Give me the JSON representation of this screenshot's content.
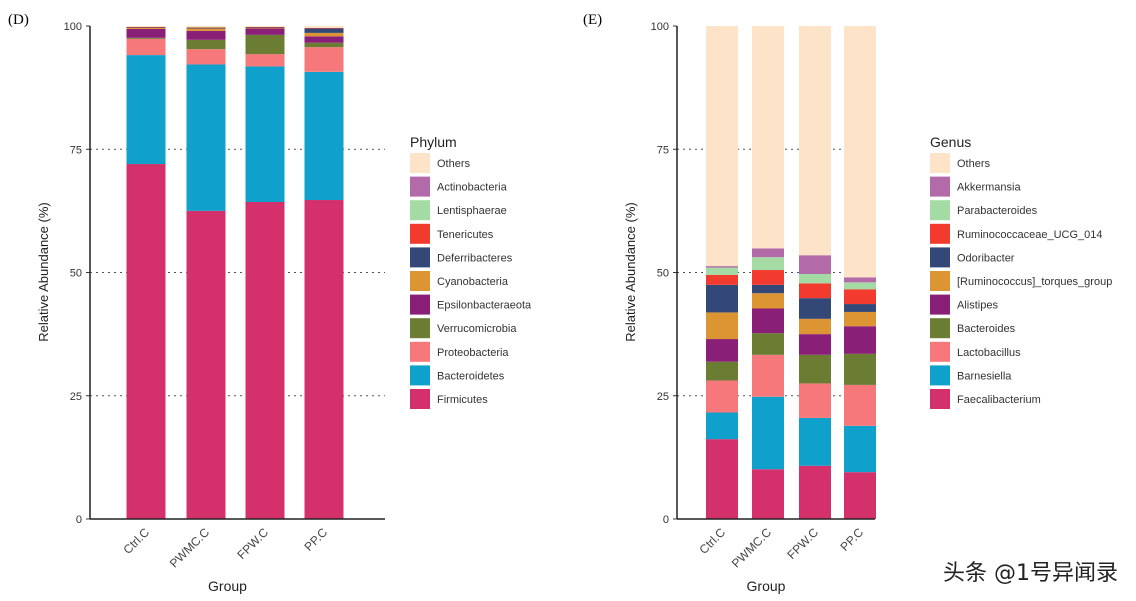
{
  "chart_data": [
    {
      "type": "bar",
      "stacked": true,
      "panel": "(D)",
      "xlabel": "Group",
      "ylabel": "Relative Abundance (%)",
      "ylim": [
        0,
        100
      ],
      "yticks": [
        0,
        25,
        50,
        75,
        100
      ],
      "categories": [
        "Ctrl.C",
        "PWMC.C",
        "FPW.C",
        "PP.C"
      ],
      "legend_title": "Phylum",
      "legend_position": "right",
      "series": [
        {
          "name": "Firmicutes",
          "color": "#d3306c",
          "values": [
            72.0,
            62.5,
            64.3,
            64.7
          ]
        },
        {
          "name": "Bacteroidetes",
          "color": "#0fa0cc",
          "values": [
            22.1,
            29.7,
            27.5,
            26.0
          ]
        },
        {
          "name": "Proteobacteria",
          "color": "#f7787a",
          "values": [
            3.3,
            3.1,
            2.5,
            5.0
          ]
        },
        {
          "name": "Verrucomicrobia",
          "color": "#6a7d33",
          "values": [
            0.2,
            1.9,
            3.9,
            0.9
          ]
        },
        {
          "name": "Epsilonbacteraeota",
          "color": "#8a1f78",
          "values": [
            1.8,
            1.8,
            1.3,
            1.3
          ]
        },
        {
          "name": "Cyanobacteria",
          "color": "#dd9533",
          "values": [
            0.2,
            0.5,
            0.1,
            0.7
          ]
        },
        {
          "name": "Deferribacteres",
          "color": "#344877",
          "values": [
            0.1,
            0.1,
            0.1,
            0.9
          ]
        },
        {
          "name": "Tenericutes",
          "color": "#f23a2e",
          "values": [
            0.1,
            0.1,
            0.1,
            0.1
          ]
        },
        {
          "name": "Lentisphaerae",
          "color": "#a4dba4",
          "values": [
            0.0,
            0.1,
            0.0,
            0.0
          ]
        },
        {
          "name": "Actinobacteria",
          "color": "#b26aa8",
          "values": [
            0.0,
            0.0,
            0.0,
            0.0
          ]
        },
        {
          "name": "Others",
          "color": "#fde3c8",
          "values": [
            0.2,
            0.2,
            0.2,
            0.4
          ]
        }
      ]
    },
    {
      "type": "bar",
      "stacked": true,
      "panel": "(E)",
      "xlabel": "Group",
      "ylabel": "Relative Abundance (%)",
      "ylim": [
        0,
        100
      ],
      "yticks": [
        0,
        25,
        50,
        75,
        100
      ],
      "categories": [
        "Ctrl.C",
        "PWMC.C",
        "FPW.C",
        "PP.C"
      ],
      "legend_title": "Genus",
      "legend_position": "right",
      "series": [
        {
          "name": "Faecalibacterium",
          "color": "#d3306c",
          "values": [
            16.2,
            10.1,
            10.8,
            9.5
          ]
        },
        {
          "name": "Barnesiella",
          "color": "#0fa0cc",
          "values": [
            5.4,
            14.7,
            9.7,
            9.4
          ]
        },
        {
          "name": "Lactobacillus",
          "color": "#f7787a",
          "values": [
            6.5,
            8.5,
            7.0,
            8.3
          ]
        },
        {
          "name": "Bacteroides",
          "color": "#6a7d33",
          "values": [
            3.8,
            4.4,
            5.8,
            6.3
          ]
        },
        {
          "name": "Alistipes",
          "color": "#8a1f78",
          "values": [
            4.6,
            5.0,
            4.2,
            5.6
          ]
        },
        {
          "name": "[Ruminococcus]_torques_group",
          "color": "#dd9533",
          "values": [
            5.4,
            3.1,
            3.1,
            2.9
          ]
        },
        {
          "name": "Odoribacter",
          "color": "#344877",
          "values": [
            5.6,
            1.7,
            4.2,
            1.6
          ]
        },
        {
          "name": "Ruminococcaceae_UCG_014",
          "color": "#f23a2e",
          "values": [
            2.0,
            3.0,
            3.0,
            3.0
          ]
        },
        {
          "name": "Parabacteroides",
          "color": "#a4dba4",
          "values": [
            1.5,
            2.6,
            1.9,
            1.4
          ]
        },
        {
          "name": "Akkermansia",
          "color": "#b26aa8",
          "values": [
            0.3,
            1.8,
            3.8,
            1.0
          ]
        },
        {
          "name": "Others",
          "color": "#fde3c8",
          "values": [
            48.7,
            45.1,
            46.5,
            51.0
          ]
        }
      ]
    }
  ],
  "watermark": "头条 @1号异闻录"
}
